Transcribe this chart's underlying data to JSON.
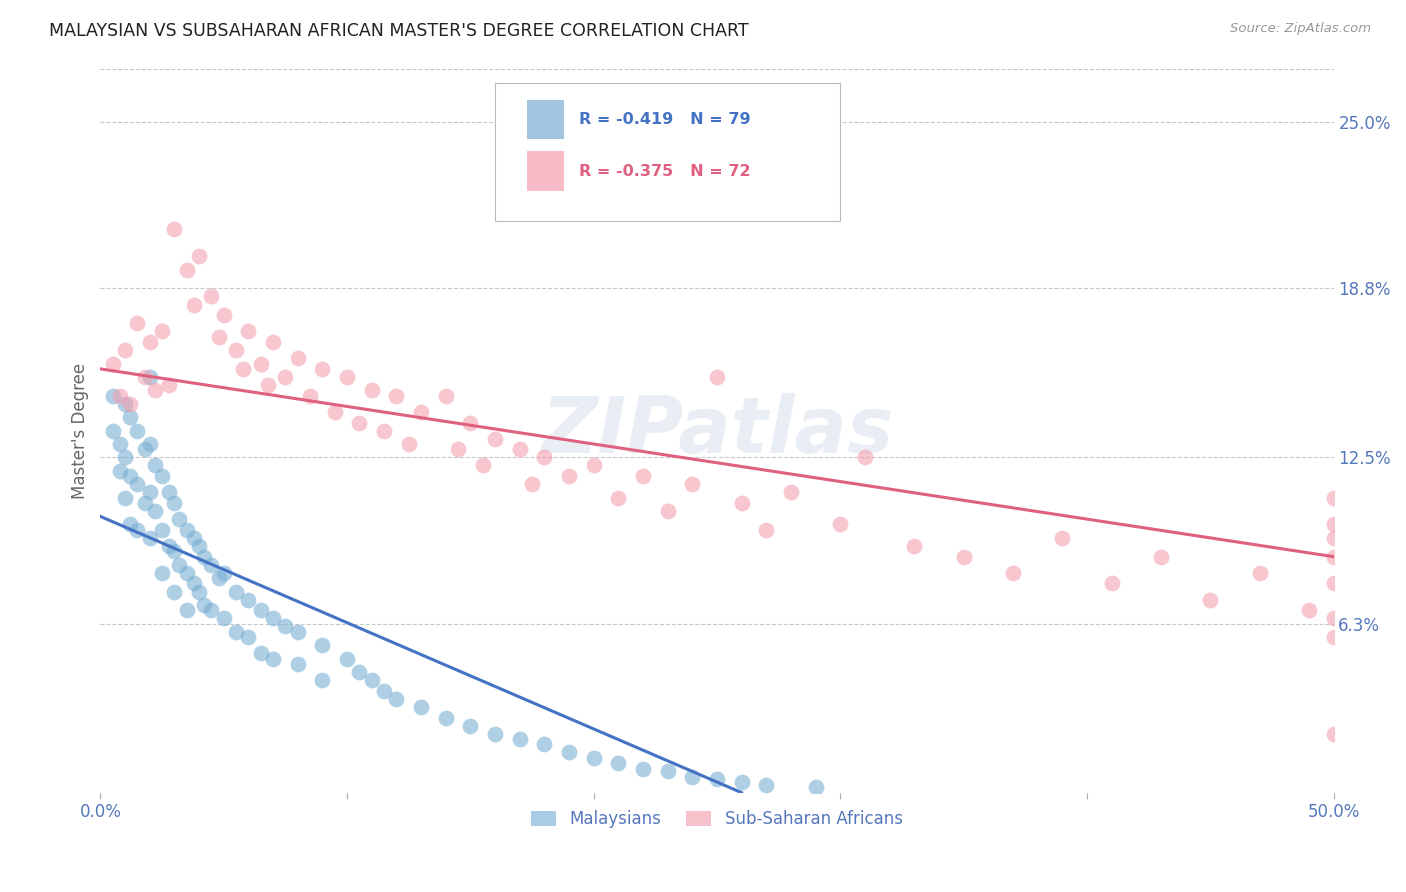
{
  "title": "MALAYSIAN VS SUBSAHARAN AFRICAN MASTER'S DEGREE CORRELATION CHART",
  "source": "Source: ZipAtlas.com",
  "watermark": "ZIPatlas",
  "ylabel": "Master's Degree",
  "ytick_labels": [
    "25.0%",
    "18.8%",
    "12.5%",
    "6.3%"
  ],
  "ytick_values": [
    0.25,
    0.188,
    0.125,
    0.063
  ],
  "xmin": 0.0,
  "xmax": 0.5,
  "ymin": 0.0,
  "ymax": 0.27,
  "legend_blue_r": "-0.419",
  "legend_blue_n": "79",
  "legend_pink_r": "-0.375",
  "legend_pink_n": "72",
  "blue_color": "#7bafd4",
  "pink_color": "#f4a0b0",
  "blue_line_color": "#4472c4",
  "pink_line_color": "#e06080",
  "title_color": "#222222",
  "axis_tick_color": "#5577bb",
  "grid_color": "#c8c8c8",
  "background_color": "#ffffff",
  "blue_line_x0": 0.0,
  "blue_line_y0": 0.103,
  "blue_line_x1": 0.26,
  "blue_line_y1": 0.0,
  "pink_line_x0": 0.0,
  "pink_line_y0": 0.158,
  "pink_line_x1": 0.5,
  "pink_line_y1": 0.088,
  "blue_x": [
    0.005,
    0.005,
    0.008,
    0.008,
    0.01,
    0.01,
    0.01,
    0.012,
    0.012,
    0.012,
    0.015,
    0.015,
    0.015,
    0.018,
    0.018,
    0.02,
    0.02,
    0.02,
    0.02,
    0.022,
    0.022,
    0.025,
    0.025,
    0.025,
    0.028,
    0.028,
    0.03,
    0.03,
    0.03,
    0.032,
    0.032,
    0.035,
    0.035,
    0.035,
    0.038,
    0.038,
    0.04,
    0.04,
    0.042,
    0.042,
    0.045,
    0.045,
    0.048,
    0.05,
    0.05,
    0.055,
    0.055,
    0.06,
    0.06,
    0.065,
    0.065,
    0.07,
    0.07,
    0.075,
    0.08,
    0.08,
    0.09,
    0.09,
    0.1,
    0.105,
    0.11,
    0.115,
    0.12,
    0.13,
    0.14,
    0.15,
    0.16,
    0.17,
    0.18,
    0.19,
    0.2,
    0.21,
    0.22,
    0.23,
    0.24,
    0.25,
    0.26,
    0.27,
    0.29
  ],
  "blue_y": [
    0.148,
    0.135,
    0.13,
    0.12,
    0.145,
    0.125,
    0.11,
    0.14,
    0.118,
    0.1,
    0.135,
    0.115,
    0.098,
    0.128,
    0.108,
    0.155,
    0.13,
    0.112,
    0.095,
    0.122,
    0.105,
    0.118,
    0.098,
    0.082,
    0.112,
    0.092,
    0.108,
    0.09,
    0.075,
    0.102,
    0.085,
    0.098,
    0.082,
    0.068,
    0.095,
    0.078,
    0.092,
    0.075,
    0.088,
    0.07,
    0.085,
    0.068,
    0.08,
    0.082,
    0.065,
    0.075,
    0.06,
    0.072,
    0.058,
    0.068,
    0.052,
    0.065,
    0.05,
    0.062,
    0.06,
    0.048,
    0.055,
    0.042,
    0.05,
    0.045,
    0.042,
    0.038,
    0.035,
    0.032,
    0.028,
    0.025,
    0.022,
    0.02,
    0.018,
    0.015,
    0.013,
    0.011,
    0.009,
    0.008,
    0.006,
    0.005,
    0.004,
    0.003,
    0.002
  ],
  "pink_x": [
    0.005,
    0.008,
    0.01,
    0.012,
    0.015,
    0.018,
    0.02,
    0.022,
    0.025,
    0.028,
    0.03,
    0.035,
    0.038,
    0.04,
    0.045,
    0.048,
    0.05,
    0.055,
    0.058,
    0.06,
    0.065,
    0.068,
    0.07,
    0.075,
    0.08,
    0.085,
    0.09,
    0.095,
    0.1,
    0.105,
    0.11,
    0.115,
    0.12,
    0.125,
    0.13,
    0.14,
    0.145,
    0.15,
    0.155,
    0.16,
    0.17,
    0.175,
    0.18,
    0.19,
    0.2,
    0.21,
    0.22,
    0.23,
    0.24,
    0.25,
    0.26,
    0.27,
    0.28,
    0.3,
    0.31,
    0.33,
    0.35,
    0.37,
    0.39,
    0.41,
    0.43,
    0.45,
    0.47,
    0.49,
    0.5,
    0.5,
    0.5,
    0.5,
    0.5,
    0.5,
    0.5,
    0.5
  ],
  "pink_y": [
    0.16,
    0.148,
    0.165,
    0.145,
    0.175,
    0.155,
    0.168,
    0.15,
    0.172,
    0.152,
    0.21,
    0.195,
    0.182,
    0.2,
    0.185,
    0.17,
    0.178,
    0.165,
    0.158,
    0.172,
    0.16,
    0.152,
    0.168,
    0.155,
    0.162,
    0.148,
    0.158,
    0.142,
    0.155,
    0.138,
    0.15,
    0.135,
    0.148,
    0.13,
    0.142,
    0.148,
    0.128,
    0.138,
    0.122,
    0.132,
    0.128,
    0.115,
    0.125,
    0.118,
    0.122,
    0.11,
    0.118,
    0.105,
    0.115,
    0.155,
    0.108,
    0.098,
    0.112,
    0.1,
    0.125,
    0.092,
    0.088,
    0.082,
    0.095,
    0.078,
    0.088,
    0.072,
    0.082,
    0.068,
    0.11,
    0.095,
    0.078,
    0.065,
    0.088,
    0.058,
    0.1,
    0.022
  ]
}
